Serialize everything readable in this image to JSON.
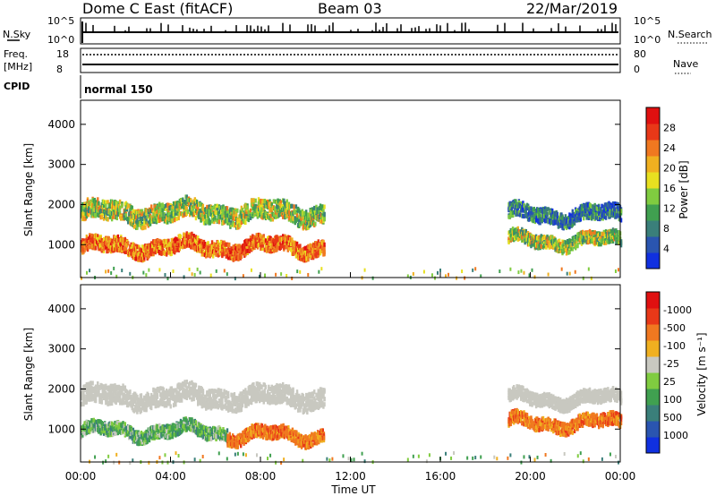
{
  "header": {
    "station": "Dome C East (fitACF)",
    "beam": "Beam 03",
    "date": "22/Mar/2019"
  },
  "strip": {
    "nsky_label": "N.Sky",
    "nsky_ticks": [
      "10^5",
      "10^0"
    ],
    "nsearch_label": "N.Search",
    "nsearch_ticks": [
      "10^5",
      "10^0"
    ],
    "freq_label": "Freq.",
    "freq_unit": "[MHz]",
    "freq_ticks": [
      "18",
      "8"
    ],
    "nave_label": "Nave",
    "nave_ticks": [
      "80",
      "0"
    ],
    "cpid_label": "CPID",
    "cpid_value": "normal 150"
  },
  "colors": {
    "power": [
      "#1030e0",
      "#2a55b0",
      "#3a7f7a",
      "#40a050",
      "#80cc40",
      "#e8e020",
      "#f0b020",
      "#f07820",
      "#e83818",
      "#e01010"
    ],
    "velocity": [
      "#1030e0",
      "#2a55b0",
      "#3a7f7a",
      "#40a050",
      "#80cc40",
      "#c8c8c0",
      "#f0b020",
      "#f07820",
      "#e83818",
      "#e01010"
    ]
  },
  "chart_data": [
    {
      "type": "heatmap",
      "title": "",
      "xlabel": "Time UT",
      "ylabel": "Slant Range [km]",
      "x_ticks": [
        "00:00",
        "04:00",
        "08:00",
        "12:00",
        "16:00",
        "20:00",
        "00:00"
      ],
      "x_range_hours": [
        0,
        24
      ],
      "y_ticks": [
        "1000",
        "2000",
        "3000",
        "4000"
      ],
      "ylim": [
        180,
        4600
      ],
      "colorbar": {
        "label": "Power [dB]",
        "ticks": [
          "4",
          "8",
          "12",
          "16",
          "20",
          "24",
          "28"
        ],
        "range": [
          0,
          32
        ]
      },
      "scatter_bands": [
        {
          "t_start": 0.0,
          "t_end": 10.8,
          "range_center": 1850,
          "range_width": 450,
          "level": "mid"
        },
        {
          "t_start": 0.0,
          "t_end": 10.8,
          "range_center": 1000,
          "range_width": 350,
          "level": "high"
        },
        {
          "t_start": 19.0,
          "t_end": 24.0,
          "range_center": 1800,
          "range_width": 350,
          "level": "low"
        },
        {
          "t_start": 19.0,
          "t_end": 24.0,
          "range_center": 1150,
          "range_width": 300,
          "level": "mid"
        }
      ]
    },
    {
      "type": "heatmap",
      "title": "",
      "xlabel": "Time UT",
      "ylabel": "Slant Range [km]",
      "x_ticks": [
        "00:00",
        "04:00",
        "08:00",
        "12:00",
        "16:00",
        "20:00",
        "00:00"
      ],
      "x_range_hours": [
        0,
        24
      ],
      "y_ticks": [
        "1000",
        "2000",
        "3000",
        "4000"
      ],
      "ylim": [
        180,
        4600
      ],
      "colorbar": {
        "label": "Velocity [m s⁻¹]",
        "ticks": [
          "1000",
          "500",
          "100",
          "25",
          "-25",
          "-100",
          "-500",
          "-1000"
        ]
      },
      "scatter_bands": [
        {
          "t_start": 0.0,
          "t_end": 10.8,
          "range_center": 1850,
          "range_width": 450,
          "level": "near_zero"
        },
        {
          "t_start": 0.0,
          "t_end": 6.5,
          "range_center": 1000,
          "range_width": 300,
          "level": "positive"
        },
        {
          "t_start": 6.5,
          "t_end": 10.8,
          "range_center": 900,
          "range_width": 300,
          "level": "negative"
        },
        {
          "t_start": 19.0,
          "t_end": 24.0,
          "range_center": 1800,
          "range_width": 300,
          "level": "near_zero"
        },
        {
          "t_start": 19.0,
          "t_end": 24.0,
          "range_center": 1200,
          "range_width": 300,
          "level": "negative"
        }
      ]
    }
  ]
}
